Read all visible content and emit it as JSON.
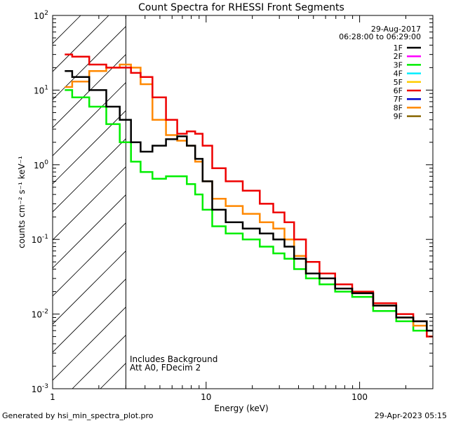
{
  "footer": {
    "left": "Generated by hsi_min_spectra_plot.pro",
    "right": "29-Apr-2023 05:15"
  },
  "chart_data": {
    "type": "line",
    "title": "Count Spectra for RHESSI Front Segments",
    "xlabel": "Energy (keV)",
    "ylabel": "counts cm⁻² s⁻¹ keV⁻¹",
    "xscale": "log",
    "yscale": "log",
    "xlim": [
      1,
      300
    ],
    "ylim": [
      0.001,
      100
    ],
    "x_tick_labels": [
      {
        "value": 1,
        "label": "1"
      },
      {
        "value": 10,
        "label": "10"
      },
      {
        "value": 100,
        "label": "100"
      }
    ],
    "y_tick_labels": [
      {
        "value": 0.001,
        "mantissa": "10",
        "exp": "-3"
      },
      {
        "value": 0.01,
        "mantissa": "10",
        "exp": "-2"
      },
      {
        "value": 0.1,
        "mantissa": "10",
        "exp": "-1"
      },
      {
        "value": 1,
        "mantissa": "10",
        "exp": "0"
      },
      {
        "value": 10,
        "mantissa": "10",
        "exp": "1"
      },
      {
        "value": 100,
        "mantissa": "10",
        "exp": "2"
      }
    ],
    "date": "29-Aug-2017",
    "time_range": "06:28:00 to 06:29:00",
    "annotations": [
      "Includes Background",
      "Att A0, FDecim 2"
    ],
    "hatched_region": {
      "x_from": 1,
      "x_to": 3
    },
    "legend_position": "top-right",
    "legend": [
      {
        "name": "1F",
        "color": "#000000"
      },
      {
        "name": "2F",
        "color": "#ff00ff"
      },
      {
        "name": "3F",
        "color": "#00ee00"
      },
      {
        "name": "4F",
        "color": "#00eeff"
      },
      {
        "name": "5F",
        "color": "#ffcc00"
      },
      {
        "name": "6F",
        "color": "#ee0000"
      },
      {
        "name": "7F",
        "color": "#0000cc"
      },
      {
        "name": "8F",
        "color": "#ff8800"
      },
      {
        "name": "9F",
        "color": "#886600"
      }
    ],
    "series": [
      {
        "name": "3F",
        "color": "#00ee00",
        "x": [
          1.2,
          1.5,
          2,
          2.5,
          3,
          3.5,
          4,
          5,
          6,
          7,
          8,
          9,
          10,
          12,
          15,
          20,
          25,
          30,
          35,
          40,
          50,
          60,
          80,
          100,
          150,
          200,
          250,
          300
        ],
        "y": [
          10,
          8,
          6,
          3.5,
          2,
          1.1,
          0.8,
          0.65,
          0.7,
          0.7,
          0.55,
          0.4,
          0.25,
          0.15,
          0.12,
          0.1,
          0.08,
          0.065,
          0.055,
          0.04,
          0.03,
          0.025,
          0.02,
          0.017,
          0.011,
          0.008,
          0.006,
          0.005
        ]
      },
      {
        "name": "8F",
        "color": "#ff8800",
        "x": [
          1.2,
          1.5,
          2,
          2.5,
          3,
          3.5,
          4,
          5,
          6,
          7,
          8,
          9,
          10,
          12,
          15,
          20,
          25,
          30,
          35,
          40,
          50,
          60,
          80,
          100,
          150,
          200,
          250,
          300
        ],
        "y": [
          11,
          13,
          18,
          20,
          22,
          20,
          12,
          4,
          2.5,
          2.1,
          1.8,
          1.1,
          0.6,
          0.35,
          0.28,
          0.22,
          0.17,
          0.14,
          0.1,
          0.06,
          0.035,
          0.03,
          0.022,
          0.019,
          0.013,
          0.009,
          0.007,
          0.005
        ]
      },
      {
        "name": "6F",
        "color": "#ee0000",
        "x": [
          1.2,
          1.5,
          2,
          2.5,
          3,
          3.5,
          4,
          5,
          6,
          7,
          8,
          9,
          10,
          12,
          15,
          20,
          25,
          30,
          35,
          40,
          50,
          60,
          80,
          100,
          150,
          200,
          250,
          300
        ],
        "y": [
          30,
          28,
          22,
          20,
          20,
          17,
          15,
          8,
          4,
          2.6,
          2.8,
          2.6,
          1.8,
          0.9,
          0.6,
          0.45,
          0.3,
          0.23,
          0.17,
          0.1,
          0.05,
          0.035,
          0.025,
          0.02,
          0.014,
          0.01,
          0.008,
          0.005
        ]
      },
      {
        "name": "1F",
        "color": "#000000",
        "x": [
          1.2,
          1.5,
          2,
          2.5,
          3,
          3.5,
          4,
          5,
          6,
          7,
          8,
          9,
          10,
          12,
          15,
          20,
          25,
          30,
          35,
          40,
          50,
          60,
          80,
          100,
          150,
          200,
          250,
          300
        ],
        "y": [
          18,
          15,
          10,
          6,
          4,
          2,
          1.5,
          1.8,
          2.2,
          2.4,
          1.8,
          1.2,
          0.6,
          0.25,
          0.17,
          0.14,
          0.12,
          0.1,
          0.08,
          0.055,
          0.035,
          0.03,
          0.022,
          0.019,
          0.013,
          0.009,
          0.008,
          0.006
        ]
      }
    ]
  }
}
